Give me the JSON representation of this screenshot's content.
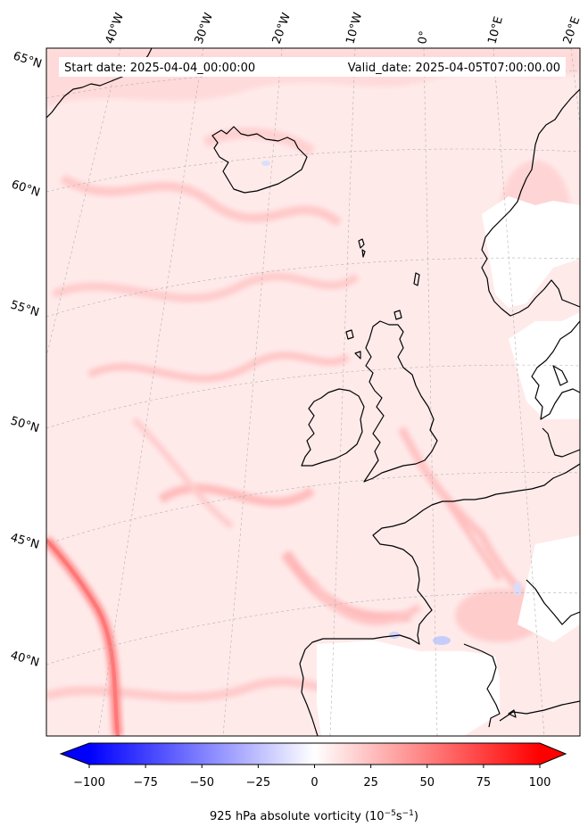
{
  "header": {
    "start_date": "Start date: 2025-04-04_00:00:00",
    "valid_date": "Valid_date: 2025-04-05T07:00:00.00"
  },
  "longitude_labels": [
    "40°W",
    "30°W",
    "20°W",
    "10°W",
    "0°",
    "10°E",
    "20°E"
  ],
  "latitude_labels": [
    "65°N",
    "60°N",
    "55°N",
    "50°N",
    "45°N",
    "40°N"
  ],
  "colorbar": {
    "min": -100,
    "max": 100,
    "ticks": [
      "−100",
      "−75",
      "−50",
      "−25",
      "0",
      "25",
      "50",
      "75",
      "100"
    ],
    "label": "925 hPa absolute vorticity (10$^{-5}$s$^{-1}$)",
    "label_text": "925 hPa absolute vorticity (10",
    "label_sup1": "−5",
    "label_mid": "s",
    "label_sup2": "−1",
    "label_end": ")",
    "colormap": "bwr",
    "low_color": "#0000ff",
    "mid_color": "#ffffff",
    "high_color": "#ff0000"
  },
  "map": {
    "field": "925 hPa absolute vorticity",
    "projection": "lambert-conformal",
    "coastline_color": "#000000",
    "gridline_color": "#b0b0b0"
  }
}
